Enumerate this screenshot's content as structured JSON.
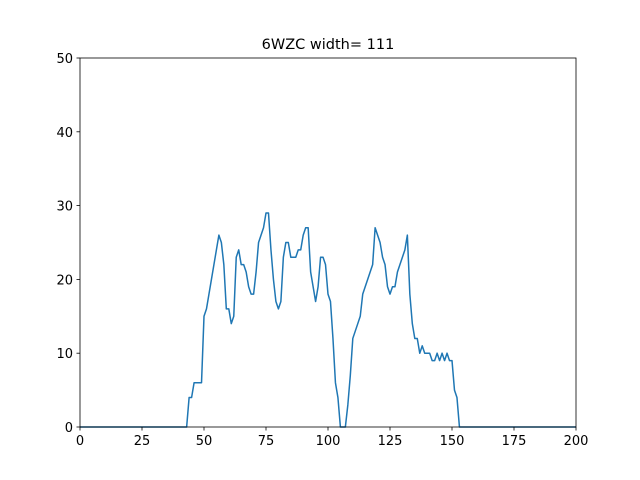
{
  "chart_data": {
    "type": "line",
    "title": "6WZC width= 111",
    "x": [
      0,
      1,
      2,
      3,
      4,
      5,
      6,
      7,
      8,
      9,
      10,
      11,
      12,
      13,
      14,
      15,
      16,
      17,
      18,
      19,
      20,
      21,
      22,
      23,
      24,
      25,
      26,
      27,
      28,
      29,
      30,
      31,
      32,
      33,
      34,
      35,
      36,
      37,
      38,
      39,
      40,
      41,
      42,
      43,
      44,
      45,
      46,
      47,
      48,
      49,
      50,
      51,
      52,
      53,
      54,
      55,
      56,
      57,
      58,
      59,
      60,
      61,
      62,
      63,
      64,
      65,
      66,
      67,
      68,
      69,
      70,
      71,
      72,
      73,
      74,
      75,
      76,
      77,
      78,
      79,
      80,
      81,
      82,
      83,
      84,
      85,
      86,
      87,
      88,
      89,
      90,
      91,
      92,
      93,
      94,
      95,
      96,
      97,
      98,
      99,
      100,
      101,
      102,
      103,
      104,
      105,
      106,
      107,
      108,
      109,
      110,
      111,
      112,
      113,
      114,
      115,
      116,
      117,
      118,
      119,
      120,
      121,
      122,
      123,
      124,
      125,
      126,
      127,
      128,
      129,
      130,
      131,
      132,
      133,
      134,
      135,
      136,
      137,
      138,
      139,
      140,
      141,
      142,
      143,
      144,
      145,
      146,
      147,
      148,
      149,
      150,
      151,
      152,
      153,
      154,
      155,
      156,
      157,
      158,
      159,
      160,
      161,
      162,
      163,
      164,
      165,
      166,
      167,
      168,
      169,
      170,
      171,
      172,
      173,
      174,
      175,
      176,
      177,
      178,
      179,
      180,
      181,
      182,
      183,
      184,
      185,
      186,
      187,
      188,
      189,
      190,
      191,
      192,
      193,
      194,
      195,
      196,
      197,
      198,
      199,
      200
    ],
    "series": [
      {
        "color": "#1f77b4",
        "values": [
          0,
          0,
          0,
          0,
          0,
          0,
          0,
          0,
          0,
          0,
          0,
          0,
          0,
          0,
          0,
          0,
          0,
          0,
          0,
          0,
          0,
          0,
          0,
          0,
          0,
          0,
          0,
          0,
          0,
          0,
          0,
          0,
          0,
          0,
          0,
          0,
          0,
          0,
          0,
          0,
          0,
          0,
          0,
          0,
          4,
          4,
          6,
          6,
          6,
          6,
          15,
          16,
          18,
          20,
          22,
          24,
          26,
          25,
          22,
          16,
          16,
          14,
          15,
          23,
          24,
          22,
          22,
          21,
          19,
          18,
          18,
          21,
          25,
          26,
          27,
          29,
          29,
          24,
          20,
          17,
          16,
          17,
          23,
          25,
          25,
          23,
          23,
          23,
          24,
          24,
          26,
          27,
          27,
          21,
          19,
          17,
          19,
          23,
          23,
          22,
          18,
          17,
          12,
          6,
          4,
          0,
          0,
          0,
          3,
          7,
          12,
          13,
          14,
          15,
          18,
          19,
          20,
          21,
          22,
          27,
          26,
          25,
          23,
          22,
          19,
          18,
          19,
          19,
          21,
          22,
          23,
          24,
          26,
          18,
          14,
          12,
          12,
          10,
          11,
          10,
          10,
          10,
          9,
          9,
          10,
          9,
          10,
          9,
          10,
          9,
          9,
          5,
          4,
          0,
          0,
          0,
          0,
          0,
          0,
          0,
          0,
          0,
          0,
          0,
          0,
          0,
          0,
          0,
          0,
          0,
          0,
          0,
          0,
          0,
          0,
          0,
          0,
          0,
          0,
          0,
          0,
          0,
          0,
          0,
          0,
          0,
          0,
          0,
          0,
          0,
          0,
          0,
          0,
          0,
          0,
          0,
          0,
          0,
          0,
          0,
          0
        ]
      }
    ],
    "xlim": [
      0,
      200
    ],
    "xticks": [
      0,
      25,
      50,
      75,
      100,
      125,
      150,
      175,
      200
    ],
    "ylim": [
      0,
      50
    ],
    "yticks": [
      0,
      10,
      20,
      30,
      40,
      50
    ]
  }
}
